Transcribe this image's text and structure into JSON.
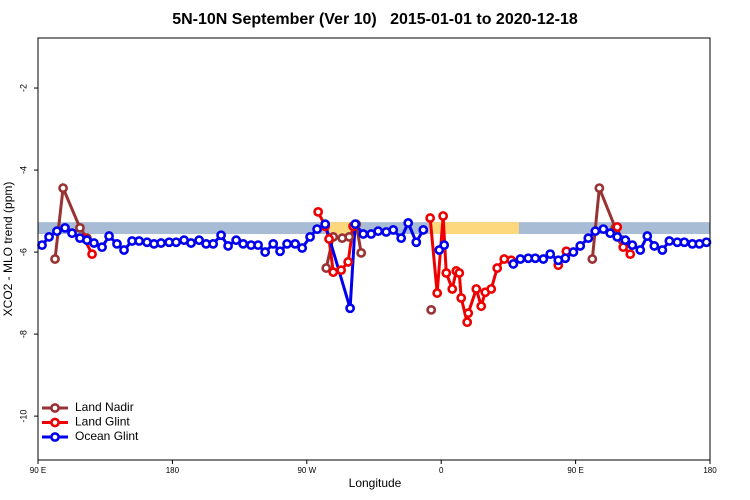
{
  "chart_data": {
    "type": "line",
    "title": "5N-10N September (Ver 10)   2015-01-01 to 2020-12-18",
    "x_label": "Longitude",
    "y_label": "XCO2 - MLO trend (ppm)",
    "xlim": [
      90,
      540
    ],
    "ylim": [
      -11.07,
      -0.78
    ],
    "xticks": [
      {
        "value": 90,
        "label": "90 E"
      },
      {
        "value": 180,
        "label": "180"
      },
      {
        "value": 270,
        "label": "90 W"
      },
      {
        "value": 360,
        "label": "0"
      },
      {
        "value": 450,
        "label": "90 E"
      },
      {
        "value": 540,
        "label": "180"
      }
    ],
    "yticks": [
      -2,
      -4,
      -6,
      -8,
      -10
    ],
    "legend": "bottom-left",
    "band": {
      "ylim": [
        -5.56,
        -5.27
      ],
      "color": "#a9bcd6",
      "segments": [
        {
          "x": [
            282,
            304
          ],
          "color": "#fdd87d"
        },
        {
          "x": [
            352,
            412
          ],
          "color": "#fdd87d"
        }
      ]
    },
    "series": [
      {
        "name": "Land Nadir",
        "color": "#993333",
        "x": [
          101.4,
          106.8,
          118.1,
          122.8,
          null,
          283.0,
          287.7,
          293.7,
          298.4,
          303.1,
          306.4,
          null,
          353.3,
          null,
          461.2,
          465.9,
          476.6,
          481.3
        ],
        "values": [
          -6.17,
          -4.44,
          -5.41,
          -5.66,
          null,
          -6.39,
          -5.63,
          -5.66,
          -5.63,
          -5.32,
          -6.02,
          null,
          -7.41,
          null,
          -6.17,
          -4.44,
          -5.41,
          -5.71
        ]
      },
      {
        "name": "Land Glint",
        "color": "#ee0000",
        "x": [
          120.8,
          126.2,
          null,
          277.6,
          282.3,
          284.9,
          287.7,
          293.0,
          297.7,
          301.0,
          null,
          352.6,
          357.3,
          361.3,
          363.4,
          367.4,
          370.1,
          372.1,
          373.4,
          377.4,
          378.1,
          383.5,
          386.8,
          389.5,
          393.5,
          397.5,
          402.2,
          406.9,
          null,
          438.4,
          443.8,
          null,
          477.9,
          481.9,
          486.6
        ],
        "values": [
          -5.66,
          -6.05,
          null,
          -5.02,
          -5.37,
          -5.68,
          -6.49,
          -6.44,
          -6.24,
          -5.37,
          null,
          -5.17,
          -7.0,
          -5.12,
          -6.51,
          -6.9,
          -6.46,
          -6.51,
          -7.12,
          -7.71,
          -7.49,
          -6.9,
          -7.32,
          -6.98,
          -6.9,
          -6.39,
          -6.17,
          -6.2,
          null,
          -6.32,
          -5.98,
          null,
          -5.39,
          -5.88,
          -6.05
        ]
      },
      {
        "name": "Ocean Glint",
        "color": "#0000ee",
        "x": [
          92.7,
          97.4,
          102.7,
          108.1,
          112.8,
          118.1,
          122.8,
          127.5,
          132.9,
          137.6,
          142.9,
          147.6,
          153.0,
          157.7,
          163.0,
          167.7,
          172.4,
          177.8,
          182.5,
          187.8,
          192.5,
          197.9,
          202.6,
          207.3,
          212.6,
          217.3,
          222.7,
          227.4,
          232.7,
          237.4,
          242.1,
          247.5,
          252.1,
          256.8,
          262.2,
          266.9,
          272.2,
          276.9,
          282.3,
          299.0,
          302.4,
          307.8,
          313.1,
          317.8,
          323.2,
          327.9,
          333.2,
          337.9,
          343.3,
          348.0,
          null,
          358.7,
          362.0,
          null,
          408.3,
          413.0,
          418.3,
          423.0,
          428.4,
          433.0,
          438.4,
          443.1,
          448.5,
          453.1,
          458.5,
          463.2,
          468.6,
          473.2,
          477.9,
          483.3,
          488.0,
          493.3,
          498.0,
          502.7,
          508.1,
          512.8,
          518.1,
          522.8,
          528.2,
          532.9,
          537.6
        ],
        "values": [
          -5.83,
          -5.63,
          -5.49,
          -5.41,
          -5.54,
          -5.66,
          -5.71,
          -5.78,
          -5.88,
          -5.61,
          -5.8,
          -5.95,
          -5.73,
          -5.73,
          -5.76,
          -5.8,
          -5.78,
          -5.76,
          -5.76,
          -5.71,
          -5.78,
          -5.71,
          -5.8,
          -5.8,
          -5.59,
          -5.85,
          -5.71,
          -5.8,
          -5.83,
          -5.83,
          -6.0,
          -5.8,
          -5.98,
          -5.8,
          -5.8,
          -5.9,
          -5.63,
          -5.44,
          -5.32,
          -7.37,
          -5.32,
          -5.56,
          -5.56,
          -5.49,
          -5.51,
          -5.46,
          -5.66,
          -5.29,
          -5.76,
          -5.46,
          null,
          -5.95,
          -5.83,
          null,
          -6.29,
          -6.17,
          -6.15,
          -6.15,
          -6.17,
          -6.05,
          -6.2,
          -6.15,
          -6.0,
          -5.85,
          -5.66,
          -5.49,
          -5.44,
          -5.54,
          -5.63,
          -5.71,
          -5.83,
          -5.95,
          -5.61,
          -5.85,
          -5.95,
          -5.73,
          -5.76,
          -5.76,
          -5.8,
          -5.8,
          -5.76
        ]
      }
    ]
  }
}
